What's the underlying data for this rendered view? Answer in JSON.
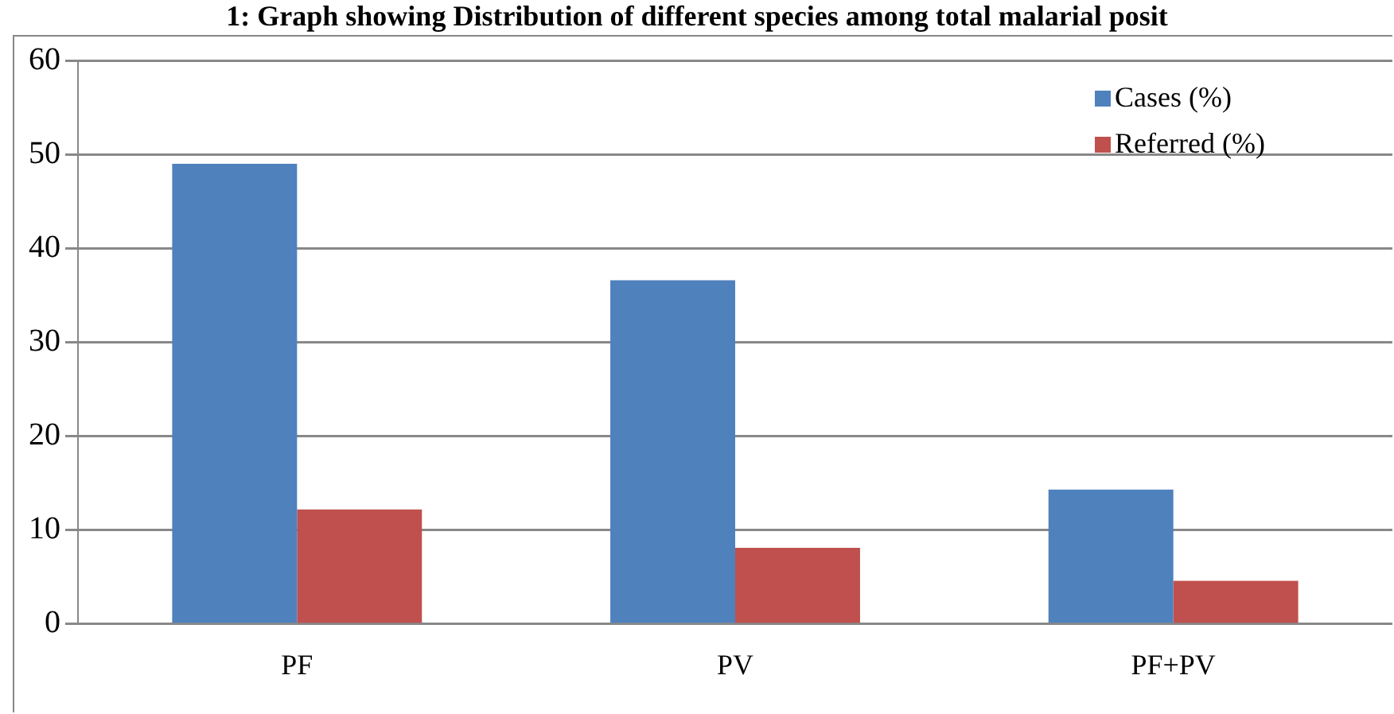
{
  "chart_data": {
    "type": "bar",
    "title": "1: Graph showing Distribution of different species among total malarial posit",
    "categories": [
      "PF",
      "PV",
      "PF+PV"
    ],
    "series": [
      {
        "name": "Cases (%)",
        "color": "#4f81bd",
        "values": [
          49,
          36.6,
          14.3
        ]
      },
      {
        "name": "Referred (%)",
        "color": "#c0504d",
        "values": [
          12.2,
          8.1,
          4.6
        ]
      }
    ],
    "ylim": [
      0,
      60
    ],
    "yticks": [
      0,
      10,
      20,
      30,
      40,
      50,
      60
    ],
    "grid": "y",
    "legend": "top right"
  }
}
